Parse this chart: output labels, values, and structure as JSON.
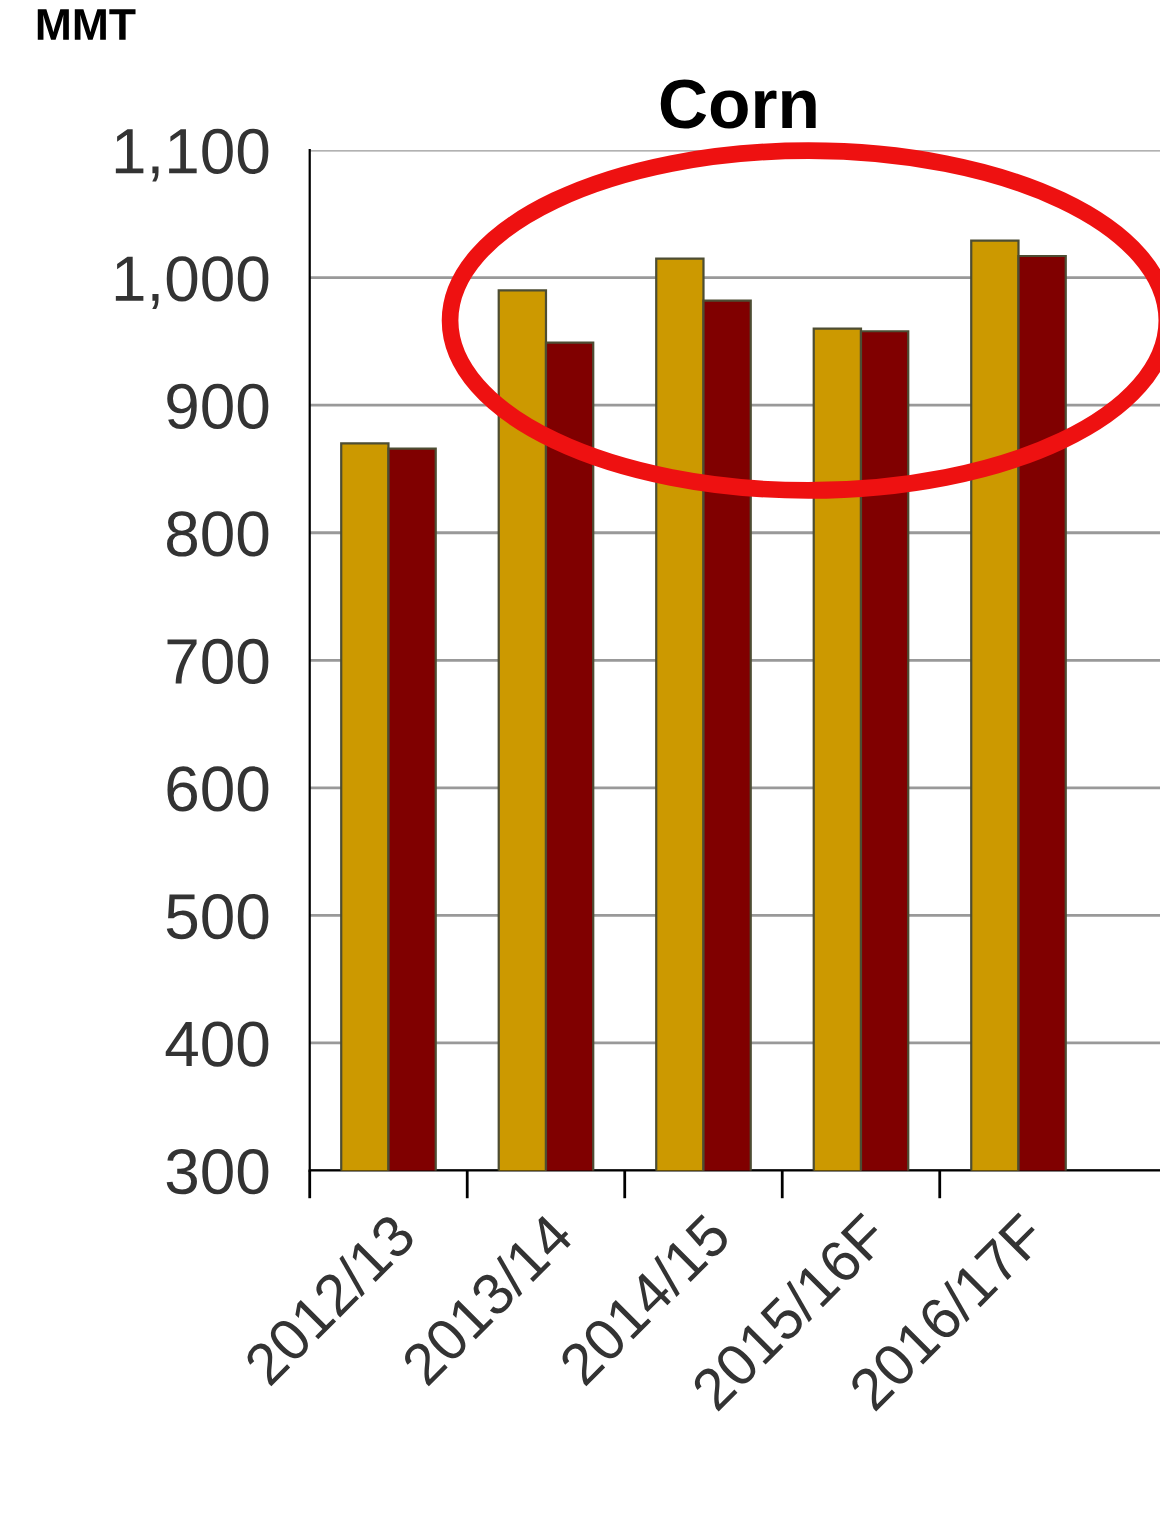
{
  "chart_data": {
    "type": "bar",
    "title": "Corn",
    "ylabel": "MMT",
    "categories": [
      "2012/13",
      "2013/14",
      "2014/15",
      "2015/16F",
      "2016/17F"
    ],
    "series": [
      {
        "color": "#cc9900",
        "values": [
          870,
          990,
          1015,
          960,
          1029
        ]
      },
      {
        "color": "#800000",
        "values": [
          866,
          949,
          982,
          958,
          1017
        ]
      }
    ],
    "ylim": [
      300,
      1100
    ],
    "yticks": [
      300,
      400,
      500,
      600,
      700,
      800,
      900,
      {
        "value": 1000,
        "label": "1,000"
      },
      {
        "value": 1100,
        "label": "1,100"
      }
    ],
    "grid": "y",
    "legend": false
  }
}
